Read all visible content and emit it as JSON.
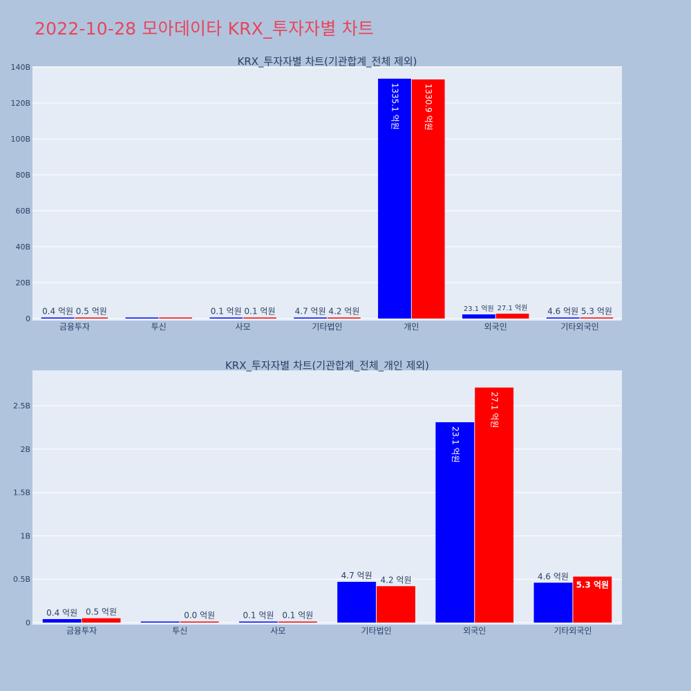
{
  "page": {
    "title": "2022-10-28 모아데이타 KRX_투자자별 차트",
    "background": "#b0c4de",
    "title_color": "#e8455a",
    "plot_background": "#e5ecf6"
  },
  "chart_data": [
    {
      "type": "bar",
      "title": "KRX_투자자별 차트(기관합계_전체 제외)",
      "categories": [
        "금융투자",
        "투신",
        "사모",
        "기타법인",
        "개인",
        "외국인",
        "기타외국인"
      ],
      "series": [
        {
          "color": "#0000ff",
          "values": [
            0.04,
            0.0,
            0.01,
            0.47,
            133.51,
            2.31,
            0.46
          ],
          "labels": [
            "0.4 억원",
            "",
            "0.1 억원",
            "4.7 억원",
            "1335.1 억원",
            "23.1 억원",
            "4.6 억원"
          ]
        },
        {
          "color": "#ff0000",
          "values": [
            0.05,
            0.0,
            0.01,
            0.42,
            133.09,
            2.71,
            0.53
          ],
          "labels": [
            "0.5 억원",
            "",
            "0.1 억원",
            "4.2 억원",
            "1330.9 억원",
            "27.1 억원",
            "5.3 억원"
          ]
        }
      ],
      "ylim": [
        0,
        140
      ],
      "yticks": [
        0,
        20,
        40,
        60,
        80,
        100,
        120,
        140
      ],
      "ytick_labels": [
        "0",
        "20B",
        "40B",
        "60B",
        "80B",
        "100B",
        "120B",
        "140B"
      ],
      "grid": true,
      "xlabel": "",
      "ylabel": ""
    },
    {
      "type": "bar",
      "title": "KRX_투자자별 차트(기관합계_전체_개인 제외)",
      "categories": [
        "금융투자",
        "투신",
        "사모",
        "기타법인",
        "외국인",
        "기타외국인"
      ],
      "series": [
        {
          "color": "#0000ff",
          "values": [
            0.04,
            0.0,
            0.01,
            0.47,
            2.31,
            0.46
          ],
          "labels": [
            "0.4 억원",
            "",
            "0.1 억원",
            "4.7 억원",
            "23.1 억원",
            "4.6 억원"
          ]
        },
        {
          "color": "#ff0000",
          "values": [
            0.05,
            0.0,
            0.01,
            0.42,
            2.71,
            0.53
          ],
          "labels": [
            "0.5 억원",
            "0.0 억원",
            "0.1 억원",
            "4.2 억원",
            "27.1 억원",
            "5.3 억원"
          ]
        }
      ],
      "ylim": [
        0,
        2.9
      ],
      "yticks": [
        0,
        0.5,
        1,
        1.5,
        2,
        2.5
      ],
      "ytick_labels": [
        "0",
        "0.5B",
        "1B",
        "1.5B",
        "2B",
        "2.5B"
      ],
      "grid": true,
      "xlabel": "",
      "ylabel": ""
    }
  ]
}
